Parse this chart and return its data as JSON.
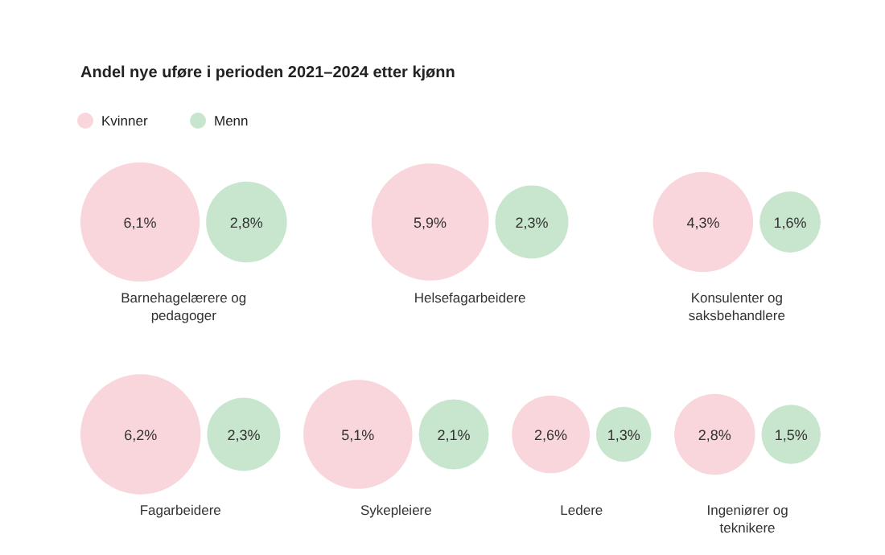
{
  "chart_data": {
    "type": "other",
    "title": "Andel nye uføre i perioden 2021–2024 etter kjønn",
    "categories": [
      "Barnehagelærere og pedagoger",
      "Helsefagarbeidere",
      "Konsulenter og saksbehandlere",
      "Fagarbeidere",
      "Sykepleiere",
      "Ledere",
      "Ingeniører og teknikere"
    ],
    "series": [
      {
        "name": "Kvinner",
        "color": "#f9d5dc",
        "values": [
          6.1,
          5.9,
          4.3,
          6.2,
          5.1,
          2.6,
          2.8
        ],
        "value_labels": [
          "6,1%",
          "5,9%",
          "4,3%",
          "6,2%",
          "5,1%",
          "2,6%",
          "2,8%"
        ]
      },
      {
        "name": "Menn",
        "color": "#c8e6cd",
        "values": [
          2.8,
          2.3,
          1.6,
          2.3,
          2.1,
          1.3,
          1.5
        ],
        "value_labels": [
          "2,8%",
          "2,3%",
          "1,6%",
          "2,3%",
          "2,1%",
          "1,3%",
          "1,5%"
        ]
      }
    ],
    "legend": "top left"
  }
}
